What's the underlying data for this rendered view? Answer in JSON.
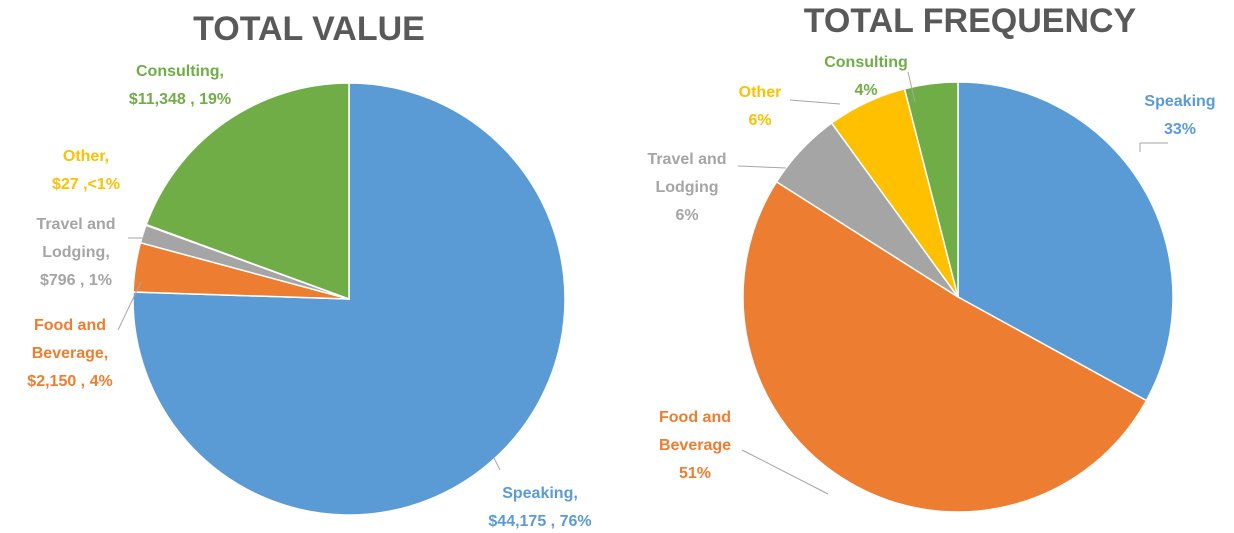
{
  "chart_data": [
    {
      "type": "pie",
      "title": "TOTAL VALUE",
      "categories": [
        "Speaking,",
        "Food and Beverage,",
        "Travel and Lodging,",
        "Other,",
        "Consulting,"
      ],
      "values": [
        44175,
        2150,
        796,
        27,
        11348
      ],
      "value_labels": [
        "$44,175 , 76%",
        "$2,150 , 4%",
        "$796 , 1%",
        "$27 ,<1%",
        "$11,348 , 19%"
      ],
      "colors": [
        "#5b9bd5",
        "#ed7d31",
        "#a5a5a5",
        "#ffc000",
        "#70ad47"
      ]
    },
    {
      "type": "pie",
      "title": "TOTAL FREQUENCY",
      "categories": [
        "Speaking",
        "Food and Beverage",
        "Travel and Lodging",
        "Other",
        "Consulting"
      ],
      "values": [
        33,
        51,
        6,
        6,
        4
      ],
      "value_labels": [
        "33%",
        "51%",
        "6%",
        "6%",
        "4%"
      ],
      "colors": [
        "#5b9bd5",
        "#ed7d31",
        "#a5a5a5",
        "#ffc000",
        "#70ad47"
      ]
    }
  ]
}
